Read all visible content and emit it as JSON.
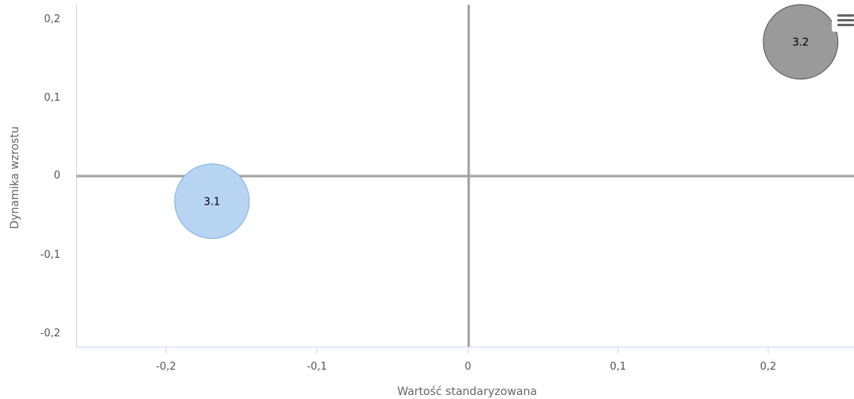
{
  "chart_data": {
    "type": "bubble",
    "xlabel": "Wartość standaryzowana",
    "ylabel": "Dynamika wzrostu",
    "xlim": [
      -0.26,
      0.26
    ],
    "ylim": [
      -0.22,
      0.22
    ],
    "x_ticks": [
      "-0,2",
      "-0,1",
      "0",
      "0,1",
      "0,2"
    ],
    "y_ticks": [
      "0,2",
      "0,1",
      "0",
      "-0,1",
      "-0,2"
    ],
    "grid": false,
    "legend": "none",
    "points": [
      {
        "label": "3.1",
        "x": -0.17,
        "y": -0.032,
        "color": "#b8d4f3",
        "border": "#7fb0e6"
      },
      {
        "label": "3.2",
        "x": 0.221,
        "y": 0.171,
        "color": "#9a9a9a",
        "border": "#555555"
      }
    ]
  },
  "menu": {
    "icon": "hamburger-menu-icon"
  }
}
